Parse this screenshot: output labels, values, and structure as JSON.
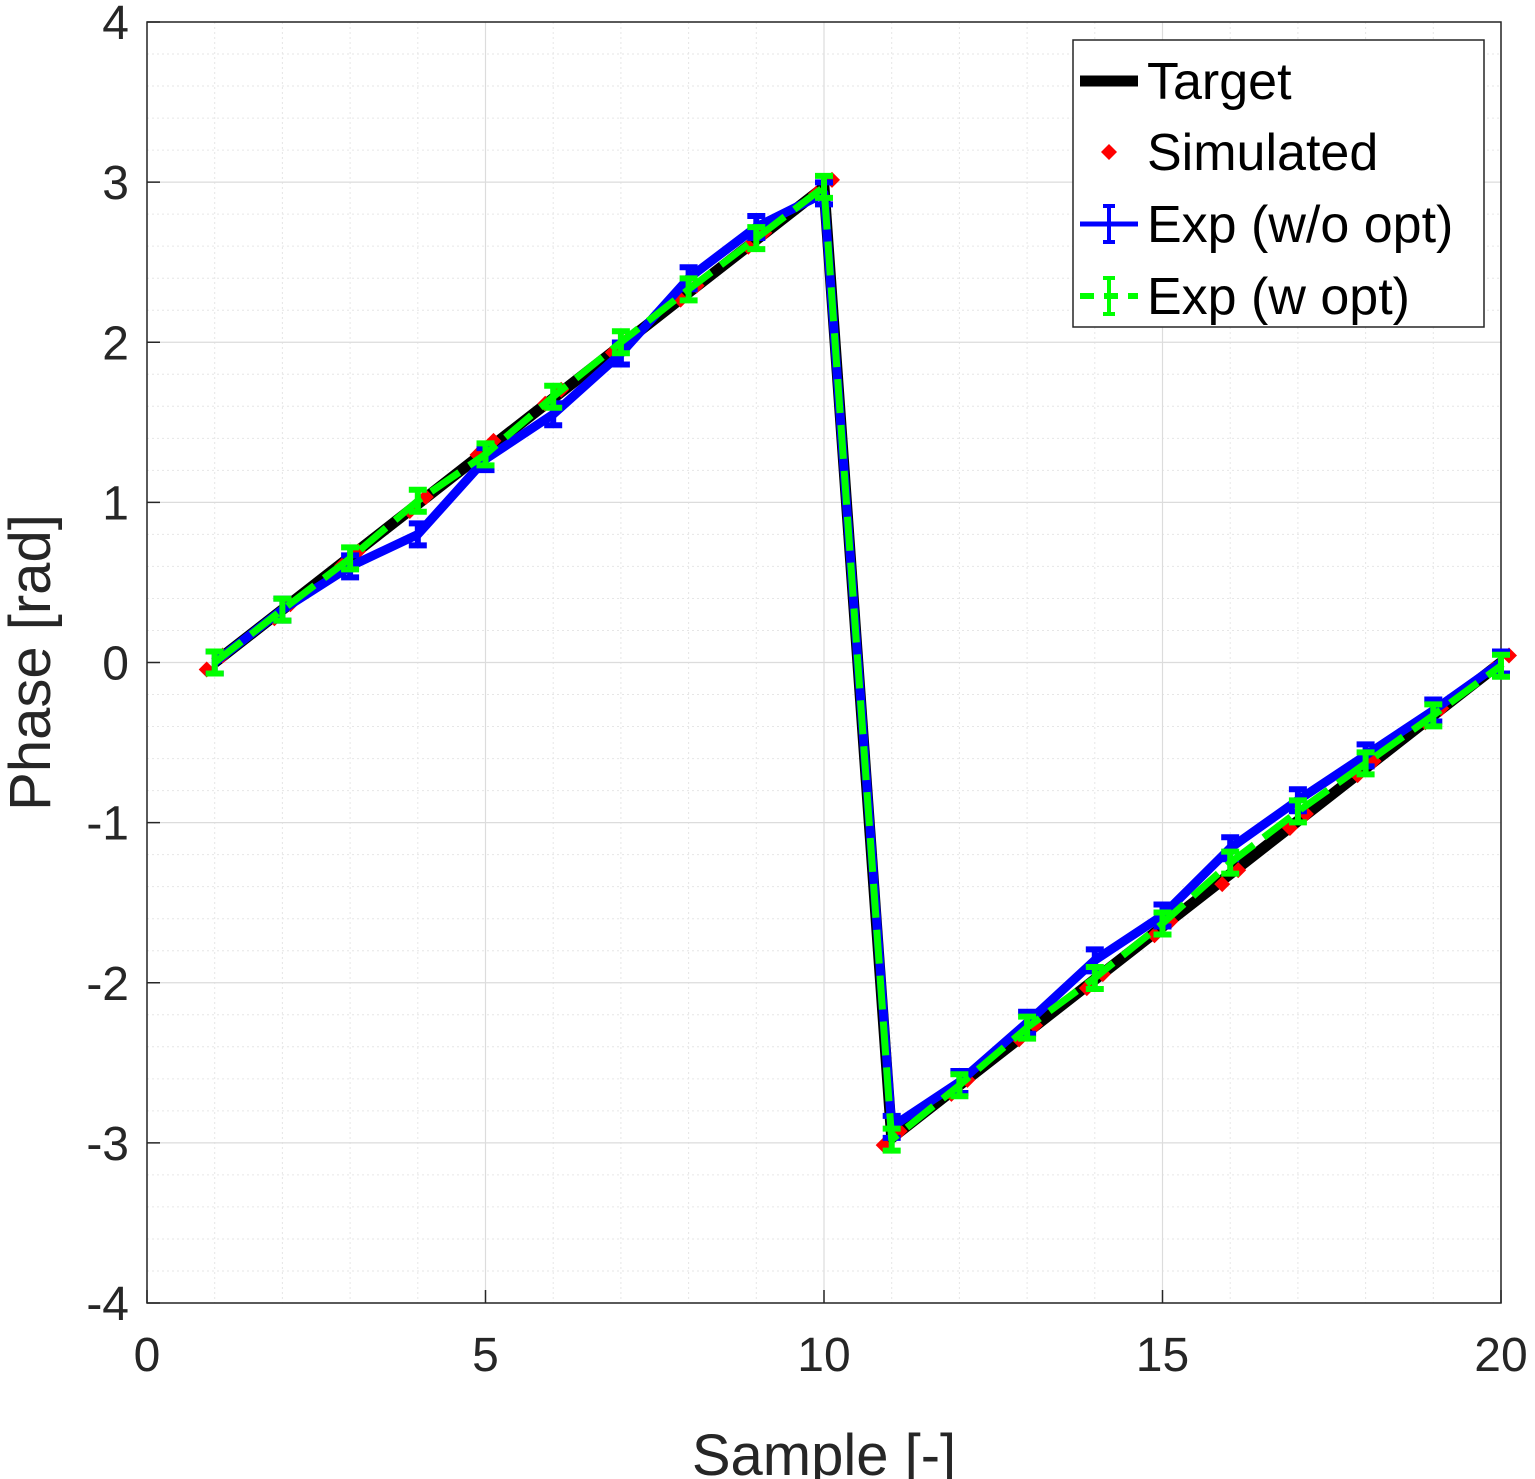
{
  "chart_data": {
    "type": "line",
    "title": "",
    "xlabel": "Sample [-]",
    "ylabel": "Phase [rad]",
    "xlim": [
      0,
      20
    ],
    "ylim": [
      -4,
      4
    ],
    "xticks": [
      0,
      5,
      10,
      15,
      20
    ],
    "yticks": [
      -4,
      -3,
      -2,
      -1,
      0,
      1,
      2,
      3,
      4
    ],
    "grid": true,
    "minor_grid": true,
    "legend_position": "top-right",
    "x": [
      1,
      2,
      3,
      4,
      5,
      6,
      7,
      8,
      9,
      10,
      11,
      12,
      13,
      14,
      15,
      16,
      17,
      18,
      19,
      20
    ],
    "series": [
      {
        "name": "Target",
        "style": "line",
        "color": "#000000",
        "values": [
          0,
          0.33,
          0.66,
          0.99,
          1.32,
          1.65,
          1.98,
          2.31,
          2.64,
          2.97,
          -2.97,
          -2.64,
          -2.31,
          -1.98,
          -1.65,
          -1.32,
          -0.99,
          -0.66,
          -0.33,
          0
        ]
      },
      {
        "name": "Simulated",
        "style": "markers",
        "color": "#ff0000",
        "values": [
          0,
          0.32,
          0.65,
          0.99,
          1.34,
          1.66,
          1.98,
          2.31,
          2.64,
          2.97,
          -2.97,
          -2.65,
          -2.31,
          -1.99,
          -1.66,
          -1.34,
          -0.99,
          -0.66,
          -0.33,
          0
        ]
      },
      {
        "name": "Exp (w/o opt)",
        "style": "errorbar",
        "color": "#0000ff",
        "values": [
          0,
          0.33,
          0.6,
          0.8,
          1.27,
          1.55,
          1.93,
          2.4,
          2.72,
          2.93,
          -2.9,
          -2.62,
          -2.25,
          -1.86,
          -1.58,
          -1.16,
          -0.86,
          -0.58,
          -0.3,
          0
        ]
      },
      {
        "name": "Exp (w opt)",
        "style": "errorbar-dashed",
        "color": "#00ff00",
        "values": [
          0,
          0.33,
          0.65,
          1.01,
          1.3,
          1.66,
          2.0,
          2.33,
          2.65,
          2.97,
          -2.98,
          -2.64,
          -2.28,
          -1.97,
          -1.63,
          -1.25,
          -0.93,
          -0.63,
          -0.33,
          -0.02
        ]
      }
    ]
  }
}
